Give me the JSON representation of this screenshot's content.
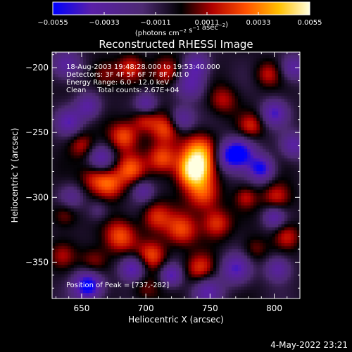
{
  "chart_data": {
    "type": "heatmap",
    "title": "Reconstructed RHESSI Image",
    "xlabel": "Heliocentric X (arcsec)",
    "ylabel": "Heliocentric Y (arcsec)",
    "xlim": [
      627,
      820
    ],
    "ylim": [
      -378,
      -188
    ],
    "x_ticks": [
      650,
      700,
      750,
      800
    ],
    "x_tick_labels": [
      "650",
      "700",
      "750",
      "800"
    ],
    "y_ticks": [
      -200,
      -250,
      -300,
      -350
    ],
    "y_tick_labels": [
      "−200",
      "−250",
      "−300",
      "−350"
    ],
    "colorbar": {
      "range": [
        -0.0055,
        0.0055
      ],
      "tick_labels": [
        "−0.0055",
        "−0.0033",
        "−0.0011",
        "0.0011",
        "0.0033",
        "0.0055"
      ],
      "tick_values": [
        -0.0055,
        -0.0033,
        -0.0011,
        0.0011,
        0.0033,
        0.0055
      ],
      "unit_label": "(photons cm^-2 s^-1 asec^-2)",
      "colors": [
        "#0000ff",
        "#5a1fa8",
        "#4d2a72",
        "#000000",
        "#b00000",
        "#ff5000",
        "#ffc000",
        "#ffffe0"
      ]
    },
    "annotations": [
      "18-Aug-2003 19:48:28.000 to 19:53:40.000",
      "Detectors: 3F 4F 5F 6F 7F 8F, Att 0",
      "Energy Range: 6.0 - 12.0 keV",
      "Clean     Total counts: 2.67E+04"
    ],
    "peak": {
      "label": "Position of Peak = [737,-282]",
      "x": 737,
      "y": -282
    },
    "blobs": [
      {
        "x": 737,
        "y": -280,
        "v": 0.0055,
        "s": 9
      },
      {
        "x": 742,
        "y": -265,
        "v": 0.004,
        "s": 10
      },
      {
        "x": 745,
        "y": -298,
        "v": 0.003,
        "s": 9
      },
      {
        "x": 713,
        "y": -270,
        "v": 0.0032,
        "s": 8
      },
      {
        "x": 715,
        "y": -247,
        "v": 0.0028,
        "s": 8
      },
      {
        "x": 699,
        "y": -240,
        "v": 0.0024,
        "s": 7
      },
      {
        "x": 683,
        "y": -253,
        "v": 0.0032,
        "s": 8
      },
      {
        "x": 688,
        "y": -278,
        "v": 0.003,
        "s": 8
      },
      {
        "x": 672,
        "y": -290,
        "v": 0.003,
        "s": 8
      },
      {
        "x": 660,
        "y": -285,
        "v": 0.0022,
        "s": 8
      },
      {
        "x": 650,
        "y": -260,
        "v": 0.002,
        "s": 7
      },
      {
        "x": 680,
        "y": -330,
        "v": 0.0032,
        "s": 9
      },
      {
        "x": 708,
        "y": -315,
        "v": 0.0025,
        "s": 8
      },
      {
        "x": 705,
        "y": -345,
        "v": 0.003,
        "s": 8
      },
      {
        "x": 728,
        "y": -325,
        "v": 0.003,
        "s": 9
      },
      {
        "x": 755,
        "y": -320,
        "v": 0.0028,
        "s": 8
      },
      {
        "x": 742,
        "y": -355,
        "v": 0.0026,
        "s": 8
      },
      {
        "x": 660,
        "y": -350,
        "v": 0.002,
        "s": 8
      },
      {
        "x": 637,
        "y": -313,
        "v": 0.0018,
        "s": 7
      },
      {
        "x": 635,
        "y": -345,
        "v": 0.0015,
        "s": 7
      },
      {
        "x": 668,
        "y": -205,
        "v": 0.0018,
        "s": 8
      },
      {
        "x": 688,
        "y": -200,
        "v": 0.0022,
        "s": 7
      },
      {
        "x": 717,
        "y": -203,
        "v": 0.0026,
        "s": 8
      },
      {
        "x": 760,
        "y": -225,
        "v": 0.002,
        "s": 8
      },
      {
        "x": 782,
        "y": -245,
        "v": 0.0022,
        "s": 7
      },
      {
        "x": 795,
        "y": -205,
        "v": 0.002,
        "s": 7
      },
      {
        "x": 802,
        "y": -300,
        "v": 0.0025,
        "s": 8
      },
      {
        "x": 810,
        "y": -330,
        "v": 0.0022,
        "s": 7
      },
      {
        "x": 785,
        "y": -340,
        "v": 0.0015,
        "s": 7
      },
      {
        "x": 778,
        "y": -300,
        "v": 0.0018,
        "s": 6
      },
      {
        "x": 700,
        "y": -370,
        "v": 0.0015,
        "s": 8
      },
      {
        "x": 638,
        "y": -198,
        "v": -0.003,
        "s": 8
      },
      {
        "x": 640,
        "y": -242,
        "v": -0.003,
        "s": 7
      },
      {
        "x": 655,
        "y": -230,
        "v": -0.003,
        "s": 7
      },
      {
        "x": 700,
        "y": -228,
        "v": -0.003,
        "s": 6
      },
      {
        "x": 665,
        "y": -270,
        "v": -0.003,
        "s": 7
      },
      {
        "x": 698,
        "y": -295,
        "v": -0.0025,
        "s": 6
      },
      {
        "x": 642,
        "y": -300,
        "v": -0.002,
        "s": 7
      },
      {
        "x": 655,
        "y": -368,
        "v": -0.0055,
        "s": 8
      },
      {
        "x": 690,
        "y": -355,
        "v": -0.004,
        "s": 7
      },
      {
        "x": 720,
        "y": -360,
        "v": -0.0035,
        "s": 6
      },
      {
        "x": 728,
        "y": -240,
        "v": -0.003,
        "s": 7
      },
      {
        "x": 735,
        "y": -213,
        "v": -0.003,
        "s": 8
      },
      {
        "x": 740,
        "y": -198,
        "v": -0.003,
        "s": 7
      },
      {
        "x": 765,
        "y": -268,
        "v": -0.004,
        "s": 8
      },
      {
        "x": 775,
        "y": -265,
        "v": -0.0035,
        "s": 8
      },
      {
        "x": 790,
        "y": -278,
        "v": -0.0045,
        "s": 7
      },
      {
        "x": 800,
        "y": -235,
        "v": -0.0035,
        "s": 7
      },
      {
        "x": 770,
        "y": -355,
        "v": -0.0035,
        "s": 8
      },
      {
        "x": 803,
        "y": -355,
        "v": -0.003,
        "s": 7
      },
      {
        "x": 800,
        "y": -315,
        "v": -0.003,
        "s": 6
      },
      {
        "x": 815,
        "y": -200,
        "v": -0.003,
        "s": 7
      },
      {
        "x": 815,
        "y": -260,
        "v": -0.003,
        "s": 7
      },
      {
        "x": 748,
        "y": -372,
        "v": -0.003,
        "s": 8
      },
      {
        "x": 663,
        "y": -310,
        "v": -0.0015,
        "s": 6
      }
    ]
  },
  "footer": {
    "timestamp": "4-May-2022 23:21"
  }
}
